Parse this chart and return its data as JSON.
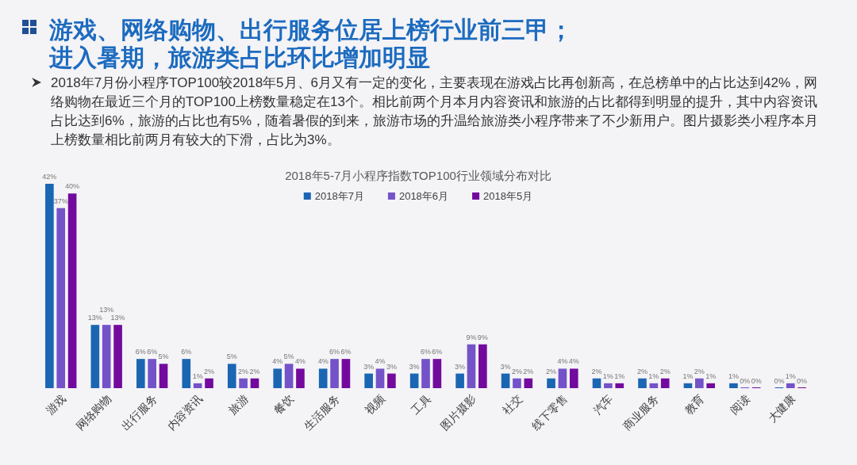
{
  "chart_data": {
    "type": "bar",
    "title": "游戏、网络购物、出行服务位居上榜行业前三甲；进入暑期，旅游类占比环比增加明显",
    "subtitle": "2018年5-7月小程序指数TOP100行业领域分布对比",
    "annotations": [
      "2018年7月份小程序TOP100较2018年5月、6月又有一定的变化，主要表现在游戏占比再创新高，在总榜单中的占比达到42%，网络购物在最近三个月的TOP100上榜数量稳定在13个。相比前两个月本月内容资讯和旅游的占比都得到明显的提升，其中内容资讯占比达到6%，旅游的占比也有5%，随着暑假的到来，旅游市场的升温给旅游类小程序带来了不少新用户。图片摄影类小程序本月上榜数量相比前两月有较大的下滑，占比为3%。"
    ],
    "categories": [
      "游戏",
      "网络购物",
      "出行服务",
      "内容资讯",
      "旅游",
      "餐饮",
      "生活服务",
      "视频",
      "工具",
      "图片摄影",
      "社交",
      "线下零售",
      "汽车",
      "商业服务",
      "教育",
      "阅读",
      "大健康"
    ],
    "series": [
      {
        "name": "2018年7月",
        "color": "#1a66b3",
        "values": [
          42,
          13,
          6,
          6,
          5,
          4,
          4,
          3,
          3,
          3,
          3,
          2,
          2,
          2,
          1,
          1,
          0
        ],
        "value_labels": [
          "42%",
          "13%",
          "6%",
          "6%",
          "5%",
          "4%",
          "4%",
          "3%",
          "3%",
          "3%",
          "3%",
          "2%",
          "2%",
          "2%",
          "1%",
          "1%",
          "0%"
        ]
      },
      {
        "name": "2018年6月",
        "color": "#7453c9",
        "values": [
          37,
          13,
          6,
          1,
          2,
          5,
          6,
          4,
          6,
          9,
          2,
          4,
          1,
          1,
          2,
          0,
          1
        ],
        "value_labels": [
          "37%",
          "13%",
          "6%",
          "1%",
          "2%",
          "5%",
          "6%",
          "4%",
          "6%",
          "9%",
          "2%",
          "4%",
          "1%",
          "1%",
          "2%",
          "0%",
          "1%"
        ]
      },
      {
        "name": "2018年5月",
        "color": "#730a9e",
        "values": [
          40,
          13,
          5,
          2,
          2,
          4,
          6,
          3,
          6,
          9,
          2,
          4,
          1,
          2,
          1,
          0,
          0
        ],
        "value_labels": [
          "40%",
          "13%",
          "5%",
          "2%",
          "2%",
          "4%",
          "6%",
          "3%",
          "6%",
          "9%",
          "2%",
          "4%",
          "1%",
          "2%",
          "1%",
          "0%",
          "0%"
        ]
      }
    ],
    "legend": "top"
  }
}
